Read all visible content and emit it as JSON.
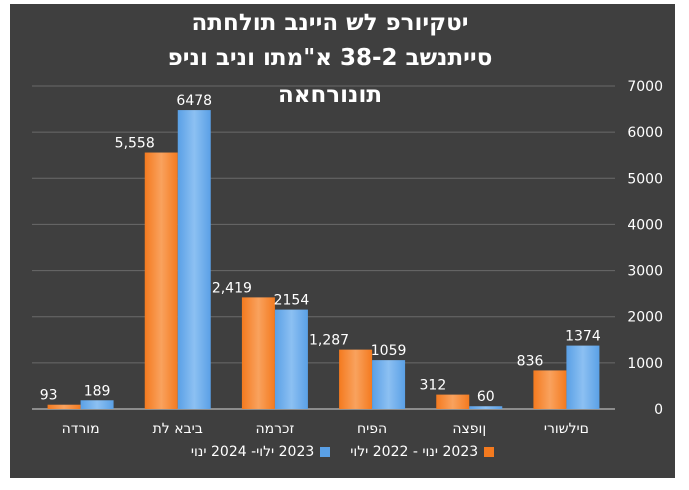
{
  "chart_data": {
    "type": "bar",
    "title_lines": [
      "יטקיורפ לש היינב תולחתה",
      "סייתנשב  38-2 א\"מתו וניב וניפ",
      "תונורחאה"
    ],
    "categories": [
      "מורדה",
      "ביבא לת",
      "זכרמה",
      "הפיח",
      "ןופצה",
      "םילשורי"
    ],
    "series": [
      {
        "name": "2023 ינוי - 2022 ילוי",
        "values": [
          93,
          5558,
          2419,
          1287,
          312,
          836
        ],
        "labels": [
          "93",
          "5,558",
          "2,419",
          "1,287",
          "312",
          "836"
        ],
        "color": "#f47a1f"
      },
      {
        "name": "2023 ילוי- 2024 ינוי",
        "values": [
          189,
          6478,
          2154,
          1059,
          60,
          1374
        ],
        "labels": [
          "189",
          "6478",
          "2154",
          "1059",
          "60",
          "1374"
        ],
        "color": "#5aa0e6"
      }
    ],
    "ylim": [
      0,
      7000
    ],
    "yticks": [
      0,
      1000,
      2000,
      3000,
      4000,
      5000,
      6000,
      7000
    ],
    "y_axis_side": "right",
    "grid": true,
    "legend_position": "bottom",
    "background": "#3f3f3f",
    "text_color": "#ffffff"
  }
}
